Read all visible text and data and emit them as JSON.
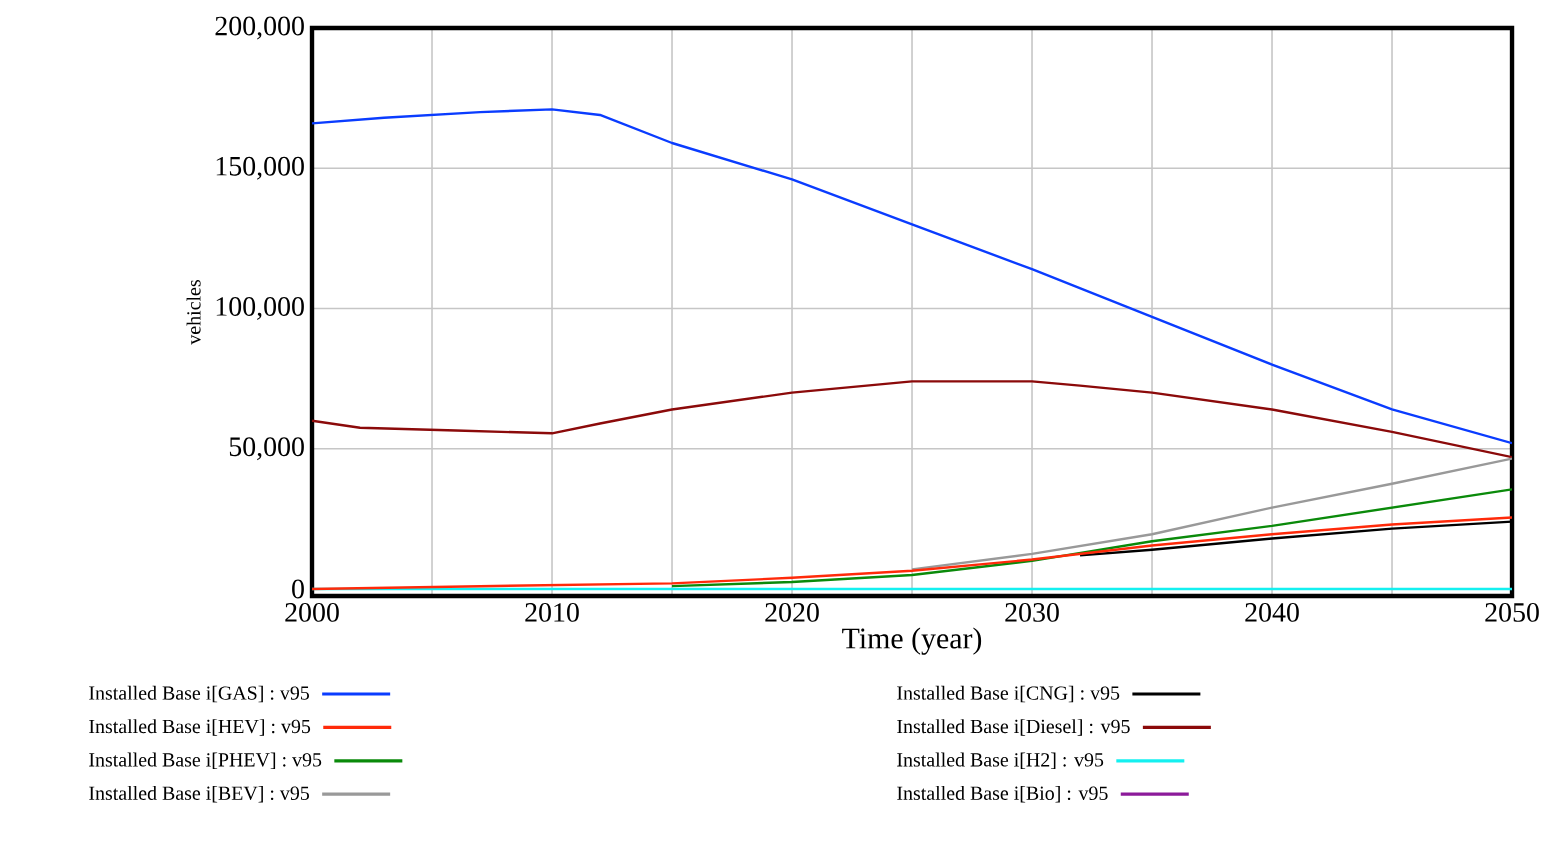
{
  "chart_data": {
    "type": "line",
    "xlabel": "Time (year)",
    "ylabel": "vehicles",
    "xlim": [
      2000,
      2050
    ],
    "ylim": [
      -2500,
      200000
    ],
    "xticks": [
      2000,
      {
        "value": 2005,
        "label": null
      },
      2010,
      {
        "value": 2015,
        "label": null
      },
      2020,
      {
        "value": 2025,
        "label": null
      },
      2030,
      {
        "value": 2035,
        "label": null
      },
      2040,
      {
        "value": 2045,
        "label": null
      },
      2050
    ],
    "yticks": [
      {
        "value": 0,
        "label": "0"
      },
      {
        "value": 50000,
        "label": "50,000"
      },
      {
        "value": 100000,
        "label": "100,000"
      },
      {
        "value": 150000,
        "label": "150,000"
      },
      {
        "value": 200000,
        "label": "200,000"
      }
    ],
    "grid": true,
    "legend": "bottom",
    "marker": "none",
    "line_style": "solid",
    "series": [
      {
        "name": "Installed Base i[GAS] : v95",
        "color": "#0a3cff",
        "x": [
          2000,
          2003,
          2007,
          2010,
          2012,
          2015,
          2020,
          2025,
          2030,
          2035,
          2040,
          2045,
          2050
        ],
        "values": [
          166000,
          168000,
          170000,
          171000,
          169000,
          159000,
          146000,
          130000,
          114000,
          97000,
          80000,
          64000,
          52000
        ]
      },
      {
        "name": "Installed Base i[HEV] : v95",
        "color": "#ff2a0a",
        "x": [
          2000,
          2007,
          2015,
          2020,
          2025,
          2030,
          2035,
          2040,
          2045,
          2050
        ],
        "values": [
          0,
          1000,
          2000,
          4000,
          6500,
          10500,
          15500,
          19500,
          23000,
          25500
        ]
      },
      {
        "name": "Installed Base i[PHEV] : v95",
        "color": "#0a8a0a",
        "x": [
          2015,
          2020,
          2025,
          2030,
          2035,
          2040,
          2045,
          2050
        ],
        "values": [
          1000,
          2500,
          5000,
          10000,
          17000,
          22500,
          29000,
          35500
        ]
      },
      {
        "name": "Installed Base i[BEV] : v95",
        "color": "#999999",
        "x": [
          2025,
          2030,
          2035,
          2040,
          2045,
          2050
        ],
        "values": [
          7000,
          12500,
          19500,
          29000,
          37500,
          46500
        ]
      },
      {
        "name": "Installed Base i[CNG] : v95",
        "color": "#000000",
        "x": [
          2032,
          2035,
          2040,
          2045,
          2050
        ],
        "values": [
          12000,
          14000,
          18000,
          21500,
          24000
        ]
      },
      {
        "name": "Installed Base i[Diesel] : v95",
        "color": "#8b0a0a",
        "x": [
          2000,
          2002,
          2006,
          2010,
          2012,
          2015,
          2020,
          2025,
          2030,
          2032,
          2035,
          2040,
          2045,
          2050
        ],
        "values": [
          60000,
          57500,
          56500,
          55500,
          59000,
          64000,
          70000,
          74000,
          74000,
          72500,
          70000,
          64000,
          56000,
          47000
        ]
      },
      {
        "name": "Installed Base i[H2] : v95",
        "color": "#14f0f0",
        "x": [
          2000,
          2050
        ],
        "values": [
          0,
          0
        ]
      },
      {
        "name": "Installed Base i[Bio] : v95",
        "color": "#8c1a9a"
      }
    ]
  }
}
